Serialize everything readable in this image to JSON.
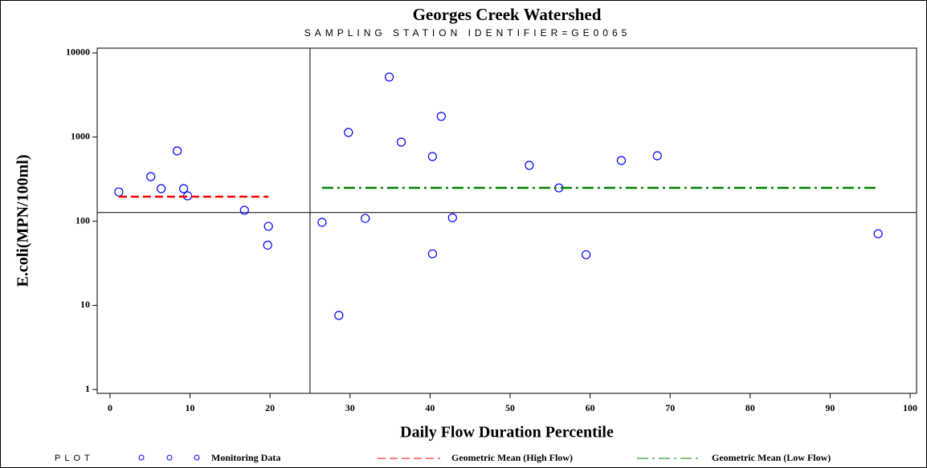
{
  "chart_data": {
    "type": "scatter",
    "title": "Georges Creek Watershed",
    "subtitle": "SAMPLING STATION IDENTIFIER=GE0065",
    "x_label": "Daily Flow Duration Percentile",
    "y_label": "E.coli(MPN/100ml)",
    "legend_title": "PLOT",
    "y_scale": "log",
    "xlim": [
      -1.6,
      100.8
    ],
    "ylim": [
      0.9,
      11400
    ],
    "xticks": [
      0,
      10,
      20,
      30,
      40,
      50,
      60,
      70,
      80,
      90,
      100
    ],
    "yticks": [
      1,
      10,
      100,
      1000,
      10000
    ],
    "x_reference": 25,
    "y_reference": 127,
    "series": [
      {
        "name": "Monitoring Data",
        "color": "#0000ff",
        "mode": "markers",
        "x": [
          1.1,
          5.1,
          6.4,
          8.4,
          9.2,
          9.7,
          16.8,
          19.8,
          19.7,
          26.5,
          28.6,
          29.8,
          31.9,
          34.9,
          36.4,
          40.3,
          40.3,
          41.4,
          42.8,
          52.4,
          56.1,
          59.5,
          63.9,
          68.4,
          96.0
        ],
        "values": [
          223,
          339,
          244,
          685,
          244,
          200,
          135,
          87,
          52,
          97,
          7.6,
          1135,
          108,
          5170,
          872,
          41,
          587,
          1762,
          110,
          461,
          249,
          40,
          526,
          600,
          71
        ]
      },
      {
        "name": "Geometric Mean (High Flow)",
        "color": "#ff0000",
        "mode": "line",
        "dash": "dash",
        "x": [
          1.1,
          19.8
        ],
        "values": [
          196,
          196
        ]
      },
      {
        "name": "Geometric Mean (Low Flow)",
        "color": "#008000",
        "mode": "line",
        "dash": "dashdot",
        "x": [
          26.5,
          96.0
        ],
        "values": [
          249,
          249
        ]
      }
    ]
  }
}
